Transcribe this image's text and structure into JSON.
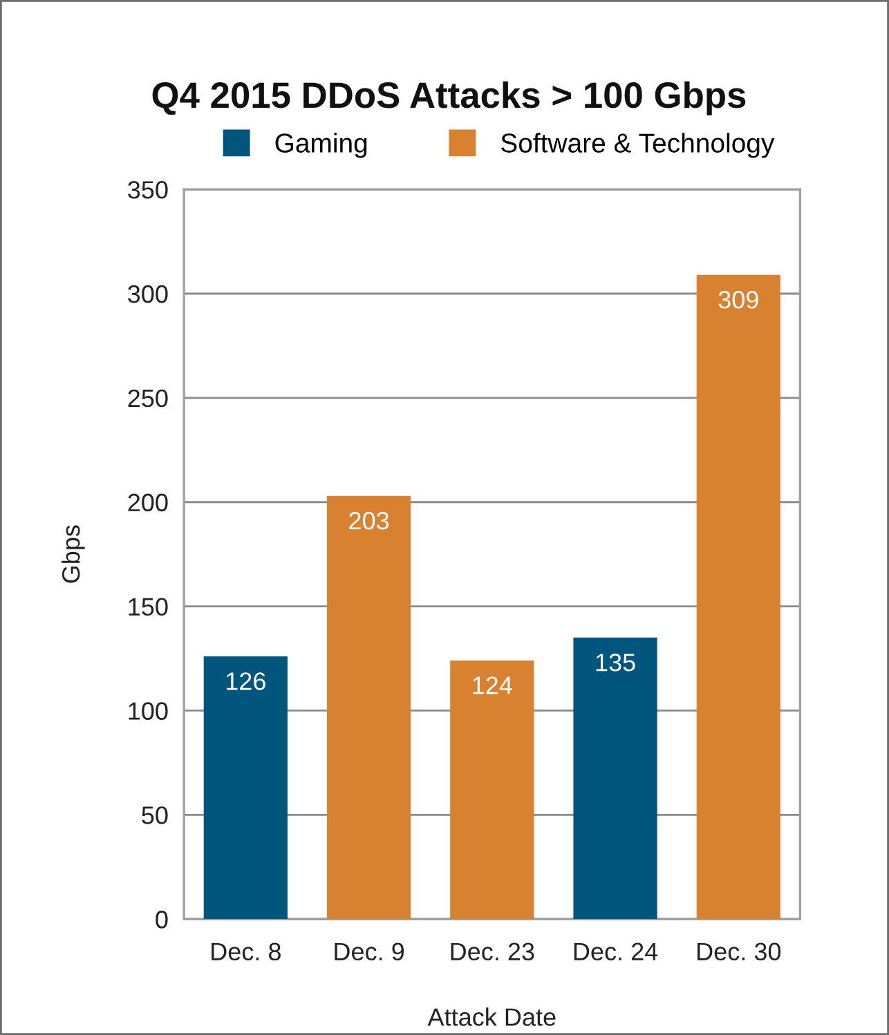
{
  "chart_data": {
    "type": "bar",
    "title": "Q4 2015 DDoS Attacks > 100 Gbps",
    "xlabel": "Attack Date",
    "ylabel": "Gbps",
    "categories": [
      "Dec. 8",
      "Dec. 9",
      "Dec. 23",
      "Dec. 24",
      "Dec. 30"
    ],
    "series": [
      {
        "name": "Gaming",
        "color": "#02567d",
        "values": [
          126,
          null,
          null,
          135,
          null
        ]
      },
      {
        "name": "Software & Technology",
        "color": "#d78131",
        "values": [
          null,
          203,
          124,
          null,
          309
        ]
      }
    ],
    "ylim": [
      0,
      350
    ],
    "yticks": [
      0,
      50,
      100,
      150,
      200,
      250,
      300,
      350
    ],
    "grid": "y",
    "legend": "top",
    "data_labels": true
  }
}
